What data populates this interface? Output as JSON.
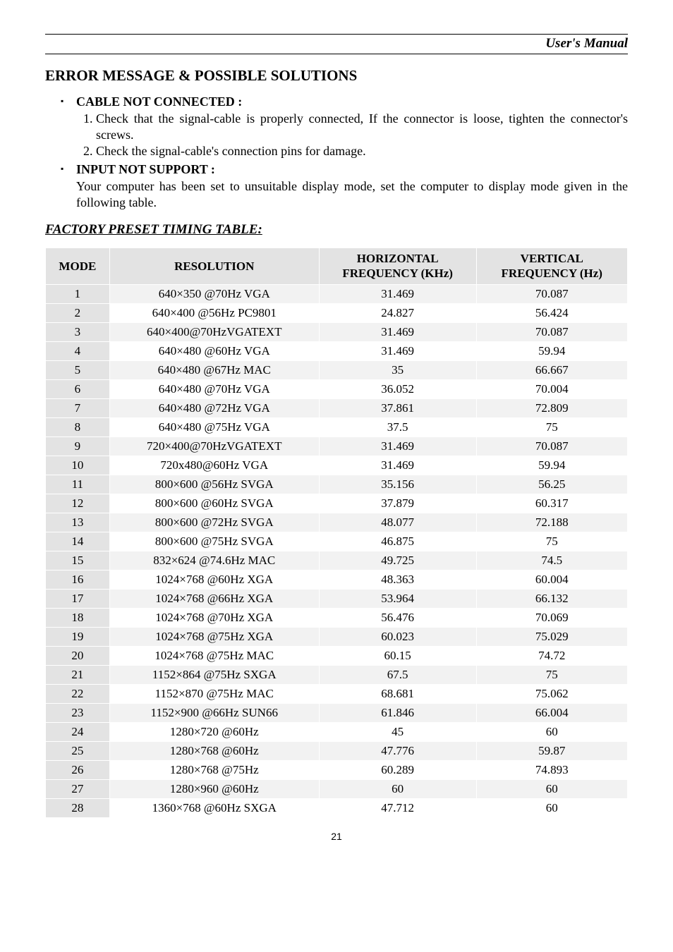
{
  "header": {
    "manual_title": "User's Manual"
  },
  "section": {
    "heading": "ERROR MESSAGE & POSSIBLE SOLUTIONS"
  },
  "items": [
    {
      "title": "CABLE NOT CONNECTED :",
      "numbered": [
        "Check that the signal-cable is properly connected, If the connector is loose, tighten the connector's screws.",
        "Check the signal-cable's connection pins for damage."
      ]
    },
    {
      "title": "INPUT NOT SUPPORT :",
      "body": "Your computer has been set to unsuitable display mode, set the computer to display mode given in the following table."
    }
  ],
  "timing_title": "FACTORY PRESET TIMING TABLE:",
  "table": {
    "columns": [
      "MODE",
      "RESOLUTION",
      "HORIZONTAL FREQUENCY (KHz)",
      "VERTICAL FREQUENCY (Hz)"
    ],
    "col_headers_split": [
      {
        "line1": "MODE"
      },
      {
        "line1": "RESOLUTION"
      },
      {
        "line1": "HORIZONTAL",
        "line2": "FREQUENCY (KHz)"
      },
      {
        "line1": "VERTICAL",
        "line2": "FREQUENCY (Hz)"
      }
    ],
    "col_widths": [
      "11%",
      "36%",
      "27%",
      "26%"
    ],
    "header_bg": "#e3e3e3",
    "mode_col_bg": "#e3e3e3",
    "row_odd_bg": "#f2f2f2",
    "row_even_bg": "#ffffff",
    "border_color": "#ffffff",
    "rows": [
      [
        "1",
        "640×350 @70Hz VGA",
        "31.469",
        "70.087"
      ],
      [
        "2",
        "640×400 @56Hz PC9801",
        "24.827",
        "56.424"
      ],
      [
        "3",
        "640×400@70HzVGATEXT",
        "31.469",
        "70.087"
      ],
      [
        "4",
        "640×480 @60Hz VGA",
        "31.469",
        "59.94"
      ],
      [
        "5",
        "640×480 @67Hz MAC",
        "35",
        "66.667"
      ],
      [
        "6",
        "640×480 @70Hz VGA",
        "36.052",
        "70.004"
      ],
      [
        "7",
        "640×480 @72Hz VGA",
        "37.861",
        "72.809"
      ],
      [
        "8",
        "640×480 @75Hz VGA",
        "37.5",
        "75"
      ],
      [
        "9",
        "720×400@70HzVGATEXT",
        "31.469",
        "70.087"
      ],
      [
        "10",
        "720x480@60Hz VGA",
        "31.469",
        "59.94"
      ],
      [
        "11",
        "800×600 @56Hz SVGA",
        "35.156",
        "56.25"
      ],
      [
        "12",
        "800×600 @60Hz SVGA",
        "37.879",
        "60.317"
      ],
      [
        "13",
        "800×600 @72Hz SVGA",
        "48.077",
        "72.188"
      ],
      [
        "14",
        "800×600 @75Hz SVGA",
        "46.875",
        "75"
      ],
      [
        "15",
        "832×624 @74.6Hz MAC",
        "49.725",
        "74.5"
      ],
      [
        "16",
        "1024×768 @60Hz XGA",
        "48.363",
        "60.004"
      ],
      [
        "17",
        "1024×768 @66Hz XGA",
        "53.964",
        "66.132"
      ],
      [
        "18",
        "1024×768 @70Hz XGA",
        "56.476",
        "70.069"
      ],
      [
        "19",
        "1024×768 @75Hz XGA",
        "60.023",
        "75.029"
      ],
      [
        "20",
        "1024×768 @75Hz MAC",
        "60.15",
        "74.72"
      ],
      [
        "21",
        "1152×864 @75Hz SXGA",
        "67.5",
        "75"
      ],
      [
        "22",
        "1152×870 @75Hz MAC",
        "68.681",
        "75.062"
      ],
      [
        "23",
        "1152×900 @66Hz SUN66",
        "61.846",
        "66.004"
      ],
      [
        "24",
        "1280×720 @60Hz",
        "45",
        "60"
      ],
      [
        "25",
        "1280×768 @60Hz",
        "47.776",
        "59.87"
      ],
      [
        "26",
        "1280×768 @75Hz",
        "60.289",
        "74.893"
      ],
      [
        "27",
        "1280×960 @60Hz",
        "60",
        "60"
      ],
      [
        "28",
        "1360×768 @60Hz SXGA",
        "47.712",
        "60"
      ]
    ]
  },
  "page_number": "21"
}
